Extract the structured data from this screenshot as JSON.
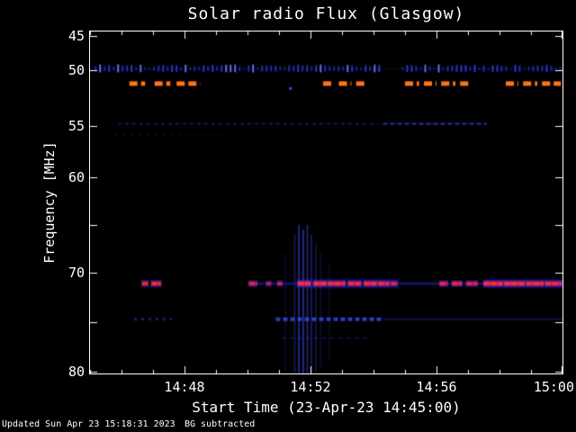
{
  "title": "Solar radio Flux (Glasgow)",
  "xlabel": "Start Time (23-Apr-23 14:45:00)",
  "ylabel": "Frequency [MHz]",
  "footer": {
    "updated": "Updated Sun Apr 23 15:18:31 2023",
    "bg": "BG subtracted"
  },
  "colors": {
    "fg": "#ffffff",
    "bg": "#000000",
    "blue": "#3340ff",
    "bright_blue": "#6a7aff",
    "orange": "#ff7518",
    "red": "#ff3b00",
    "magenta": "#ff1166",
    "edge_blue": "#4433ff"
  },
  "axes": {
    "t_max": 15,
    "xticks": [
      {
        "label": "14:48",
        "t": 3
      },
      {
        "label": "14:52",
        "t": 7
      },
      {
        "label": "14:56",
        "t": 11
      },
      {
        "label": "15:00",
        "t": 15
      }
    ],
    "yticks": [
      {
        "label": "45",
        "f": 45
      },
      {
        "label": "50",
        "f": 50
      },
      {
        "label": "55",
        "f": 55
      },
      {
        "label": "60",
        "f": 60
      },
      {
        "label": "70",
        "f": 70
      },
      {
        "label": "80",
        "f": 80
      }
    ],
    "y_unlabeled_major": [
      65,
      75
    ]
  },
  "chart_data": {
    "type": "heatmap",
    "subtype": "solar-radio-spectrogram",
    "title": "Solar radio Flux (Glasgow)",
    "xlabel": "Start Time (23-Apr-23 14:45:00)",
    "ylabel": "Frequency [MHz]",
    "x_start": "14:45:00",
    "x_end": "15:00:00",
    "date": "23-Apr-23",
    "ylim": [
      45,
      80
    ],
    "y_inverted": true,
    "background": "#000000",
    "features": {
      "lines": [
        {
          "f": 49.8,
          "segs": [
            [
              0.1,
              15
            ]
          ],
          "h": 1,
          "a": 0.22,
          "color": "#2233dd"
        },
        {
          "f": 54.8,
          "segs": [
            [
              0.9,
              12.6
            ]
          ],
          "h": 1,
          "a": 0.15,
          "color": "#2233bb"
        },
        {
          "f": 74.7,
          "segs": [
            [
              9.3,
              15
            ]
          ],
          "h": 2,
          "a": 0.4,
          "color": "#2233cc"
        }
      ],
      "tick_rows": [
        {
          "f": 49.8,
          "segs": [
            [
              0.15,
              9.2
            ],
            [
              9.9,
              14.97
            ]
          ],
          "spacing": 5,
          "h": [
            3,
            9
          ],
          "a": [
            0.3,
            0.95
          ],
          "color": "#3340ff",
          "bright": "#6a7aff"
        }
      ],
      "orange_rows": [
        {
          "f": 51.2,
          "dw": 9,
          "gap": 4,
          "h": 5,
          "a": 1,
          "color": "#ff7518",
          "segs": [
            [
              1.25,
              1.75
            ],
            [
              2.05,
              2.55
            ],
            [
              2.75,
              3.5
            ],
            [
              7.4,
              7.75
            ],
            [
              7.9,
              8.3
            ],
            [
              8.45,
              8.75
            ],
            [
              10.0,
              10.45
            ],
            [
              10.6,
              11.0
            ],
            [
              11.15,
              11.6
            ],
            [
              11.75,
              12.1
            ],
            [
              13.2,
              13.6
            ],
            [
              13.75,
              14.2
            ],
            [
              14.35,
              14.95
            ]
          ]
        }
      ],
      "faint_rows": [
        {
          "f": 54.8,
          "segs": [
            [
              0.9,
              9.0
            ]
          ],
          "dw": 3,
          "gap": 5,
          "h": 2,
          "a": 0.5,
          "color": "#2a3ad0"
        },
        {
          "f": 54.8,
          "segs": [
            [
              9.3,
              12.6
            ]
          ],
          "dw": 5,
          "gap": 3,
          "h": 2,
          "a": 0.75,
          "color": "#3344dd"
        },
        {
          "f": 55.9,
          "segs": [
            [
              0.8,
              4.2
            ]
          ],
          "dw": 2,
          "gap": 7,
          "h": 2,
          "a": 0.3,
          "color": "#2233bb"
        },
        {
          "f": 74.7,
          "segs": [
            [
              1.4,
              2.6
            ]
          ],
          "dw": 3,
          "gap": 5,
          "h": 3,
          "a": 0.55,
          "color": "#2a3ad0"
        },
        {
          "f": 74.7,
          "segs": [
            [
              5.9,
              9.3
            ]
          ],
          "dw": 5,
          "gap": 3,
          "h": 4,
          "a": 0.85,
          "color": "#3547e8"
        },
        {
          "f": 76.6,
          "segs": [
            [
              6.1,
              8.9
            ]
          ],
          "dw": 4,
          "gap": 5,
          "h": 2,
          "a": 0.4,
          "color": "#2233bb"
        }
      ],
      "stripes": [
        {
          "t": 6.2,
          "f0": 68,
          "f1": 80,
          "a": 0.15,
          "color": "#3b4bee"
        },
        {
          "t": 6.5,
          "f0": 66,
          "f1": 80.2,
          "a": 0.3,
          "color": "#3b4bee"
        },
        {
          "t": 6.63,
          "f0": 65,
          "f1": 80.2,
          "a": 0.5,
          "color": "#3b4bee"
        },
        {
          "t": 6.77,
          "f0": 65.5,
          "f1": 80.2,
          "a": 0.55,
          "color": "#3b4bee"
        },
        {
          "t": 6.9,
          "f0": 65,
          "f1": 80.2,
          "a": 0.45,
          "color": "#3b4bee"
        },
        {
          "t": 7.03,
          "f0": 66,
          "f1": 80.2,
          "a": 0.35,
          "color": "#3b4bee"
        },
        {
          "t": 7.17,
          "f0": 67,
          "f1": 80,
          "a": 0.25,
          "color": "#3b4bee"
        },
        {
          "t": 7.33,
          "f0": 68,
          "f1": 79.5,
          "a": 0.18,
          "color": "#3b4bee"
        },
        {
          "t": 7.6,
          "f0": 69,
          "f1": 79,
          "a": 0.12,
          "color": "#3b4bee"
        }
      ],
      "main_band": {
        "f": 71.1,
        "halo": {
          "segs": [
            [
              5.0,
              15
            ]
          ],
          "h": 3,
          "a": 0.45,
          "color": "#2a2aee"
        },
        "wide": {
          "segs": [
            [
              6.55,
              9.8
            ],
            [
              12.5,
              15
            ]
          ],
          "h": 11,
          "a": 0.3,
          "color": "#2222cc"
        },
        "edge_color": "#4433ff",
        "mid_color": "#ff1166",
        "core_color": "#ff3b00",
        "segments": [
          {
            "t": [
              1.65,
              1.85
            ],
            "i": 0.8
          },
          {
            "t": [
              1.95,
              2.25
            ],
            "i": 0.9
          },
          {
            "t": [
              5.05,
              5.3
            ],
            "i": 0.7
          },
          {
            "t": [
              5.6,
              5.75
            ],
            "i": 0.5
          },
          {
            "t": [
              5.95,
              6.1
            ],
            "i": 0.6
          },
          {
            "t": [
              6.6,
              7.0
            ],
            "i": 1.0
          },
          {
            "t": [
              7.1,
              7.5
            ],
            "i": 1.0
          },
          {
            "t": [
              7.55,
              8.1
            ],
            "i": 0.95
          },
          {
            "t": [
              8.2,
              8.6
            ],
            "i": 0.9
          },
          {
            "t": [
              8.7,
              9.1
            ],
            "i": 0.95
          },
          {
            "t": [
              9.15,
              9.5
            ],
            "i": 0.85
          },
          {
            "t": [
              9.55,
              9.75
            ],
            "i": 0.7
          },
          {
            "t": [
              11.1,
              11.35
            ],
            "i": 0.75
          },
          {
            "t": [
              11.5,
              11.8
            ],
            "i": 0.8
          },
          {
            "t": [
              11.95,
              12.3
            ],
            "i": 0.7
          },
          {
            "t": [
              12.5,
              13.1
            ],
            "i": 1.0
          },
          {
            "t": [
              13.15,
              13.8
            ],
            "i": 1.0
          },
          {
            "t": [
              13.85,
              14.4
            ],
            "i": 0.95
          },
          {
            "t": [
              14.45,
              14.97
            ],
            "i": 0.9
          }
        ]
      },
      "speckles": [
        {
          "t": 6.35,
          "f": 51.6,
          "a": 0.9,
          "color": "#4455ff"
        }
      ]
    }
  }
}
